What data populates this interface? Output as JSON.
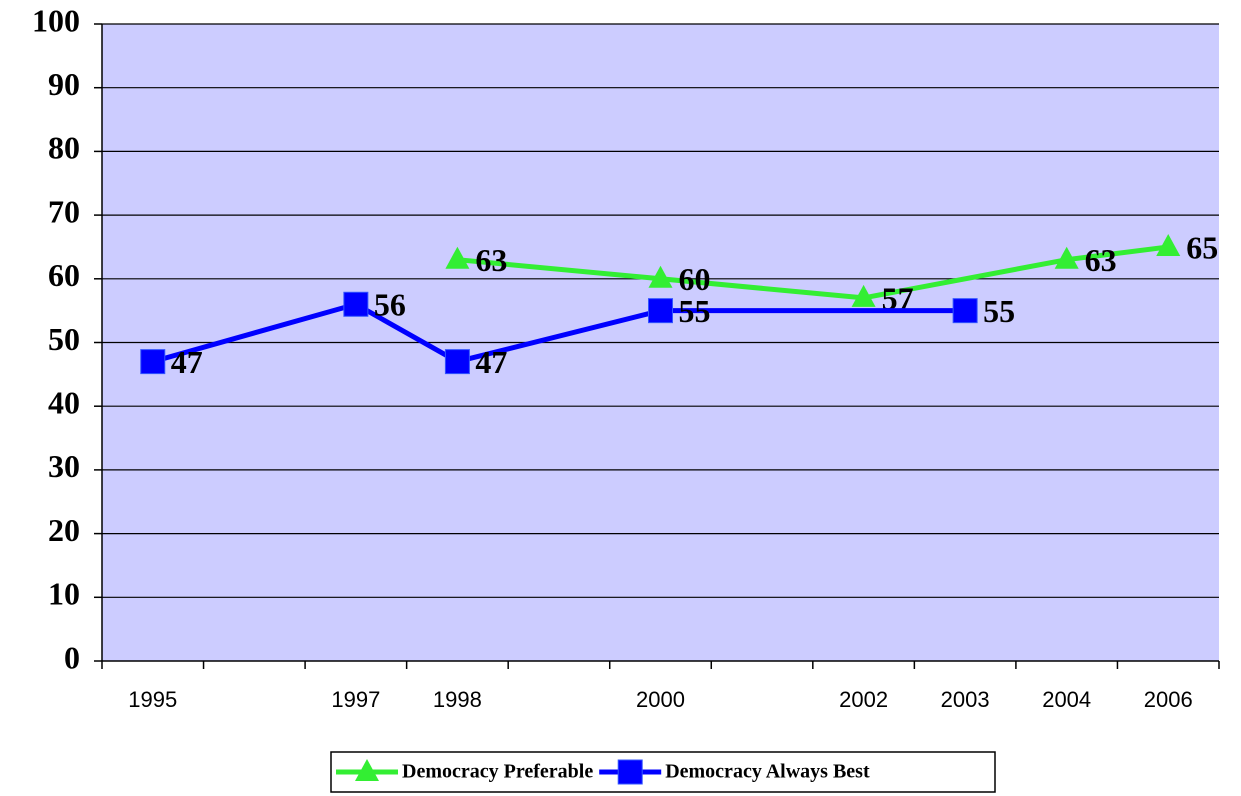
{
  "chart_data": {
    "type": "line",
    "categories": [
      "1995",
      null,
      "1997",
      "1998",
      null,
      "2000",
      null,
      "2002",
      "2003",
      "2004",
      "2006"
    ],
    "series": [
      {
        "name": "Democracy Preferable",
        "color": "#33ee33",
        "marker": "triangle",
        "values": [
          null,
          null,
          null,
          63,
          null,
          60,
          null,
          57,
          null,
          63,
          65
        ]
      },
      {
        "name": "Democracy Always Best",
        "color": "#0000ff",
        "marker": "square",
        "values": [
          47,
          null,
          56,
          47,
          null,
          55,
          null,
          null,
          55,
          null,
          null
        ]
      }
    ],
    "ylim": [
      0,
      100
    ],
    "yticks": [
      0,
      10,
      20,
      30,
      40,
      50,
      60,
      70,
      80,
      90,
      100
    ],
    "grid": true,
    "connect_gaps": true,
    "legend": "bottom"
  }
}
